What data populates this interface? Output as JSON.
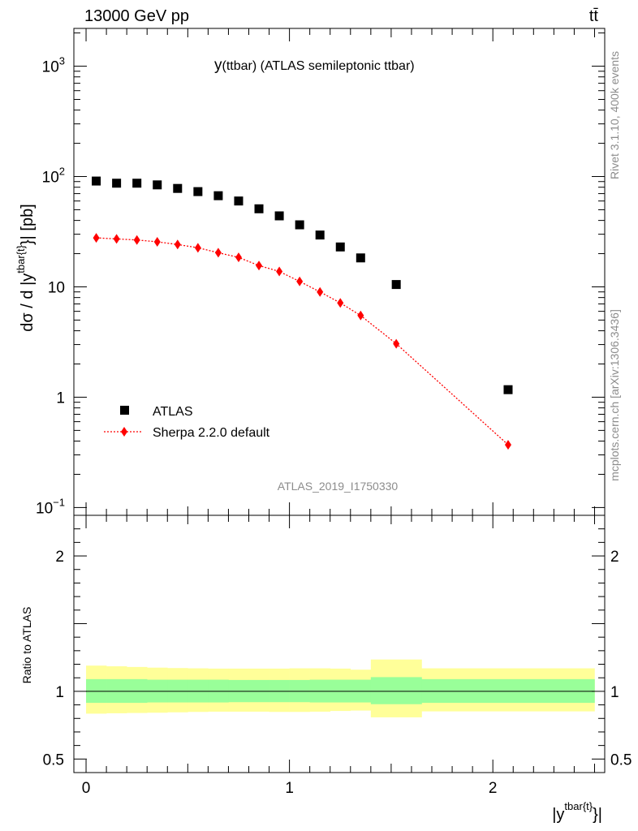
{
  "header": {
    "left": "13000 GeV pp",
    "right": "tt̄"
  },
  "side_labels": {
    "rivet": "Rivet 3.1.10,  400k events",
    "mcplots": "mcplots.cern.ch [arXiv:1306.3436]"
  },
  "chart_data": [
    {
      "type": "scatter",
      "title_main": "y",
      "title_rest": "(ttbar) (ATLAS semileptonic ttbar)",
      "analysis_id": "ATLAS_2019_I1750330",
      "ylabel": "dσ / d |y^{tbar{t}}| [pb]",
      "yscale": "log",
      "ylim": [
        0.085,
        2200
      ],
      "xlim": [
        -0.06,
        2.55
      ],
      "ytick_labels": [
        "10^-1",
        "1",
        "10",
        "10^2",
        "10^3"
      ],
      "legend_position": "bottom-left",
      "series": [
        {
          "name": "ATLAS",
          "color": "#000000",
          "marker": "square",
          "x": [
            0.05,
            0.15,
            0.25,
            0.35,
            0.45,
            0.55,
            0.65,
            0.75,
            0.85,
            0.95,
            1.05,
            1.15,
            1.25,
            1.35,
            1.525,
            2.075
          ],
          "y": [
            91,
            87,
            87,
            84,
            78,
            73,
            67,
            60,
            51,
            44,
            36.5,
            29.5,
            23,
            18.3,
            10.5,
            1.17
          ]
        },
        {
          "name": "Sherpa 2.2.0 default",
          "color": "#ff0000",
          "marker": "diamond",
          "line": "dotted",
          "x": [
            0.05,
            0.15,
            0.25,
            0.35,
            0.45,
            0.55,
            0.65,
            0.75,
            0.85,
            0.95,
            1.05,
            1.15,
            1.25,
            1.35,
            1.525,
            2.075
          ],
          "y": [
            27.8,
            27.2,
            26.6,
            25.6,
            24.2,
            22.6,
            20.4,
            18.5,
            15.6,
            13.8,
            11.2,
            9.0,
            7.15,
            5.5,
            3.05,
            0.37
          ]
        }
      ]
    },
    {
      "type": "area",
      "ylabel": "Ratio to ATLAS",
      "xlabel": "|y^{tbar{t}}|",
      "ylim": [
        0.4,
        2.3
      ],
      "xlim": [
        -0.06,
        2.55
      ],
      "x_tick_labels": [
        "0",
        "1",
        "2"
      ],
      "y_tick_labels": [
        "0.5",
        "1",
        "2"
      ],
      "bands": {
        "bins": [
          0.0,
          0.1,
          0.2,
          0.3,
          0.4,
          0.5,
          0.6,
          0.7,
          0.8,
          0.9,
          1.0,
          1.1,
          1.2,
          1.3,
          1.4,
          1.65,
          2.5
        ],
        "green_colour": "#99ff99",
        "yellow_colour": "#ffff99",
        "green_lo": [
          0.915,
          0.915,
          0.915,
          0.918,
          0.918,
          0.918,
          0.918,
          0.92,
          0.92,
          0.92,
          0.92,
          0.918,
          0.918,
          0.918,
          0.905,
          0.915
        ],
        "green_hi": [
          1.09,
          1.09,
          1.09,
          1.086,
          1.086,
          1.086,
          1.086,
          1.084,
          1.084,
          1.084,
          1.084,
          1.086,
          1.086,
          1.086,
          1.105,
          1.09
        ],
        "yellow_lo": [
          0.835,
          0.838,
          0.84,
          0.842,
          0.845,
          0.848,
          0.85,
          0.85,
          0.85,
          0.848,
          0.848,
          0.85,
          0.855,
          0.858,
          0.808,
          0.852
        ],
        "yellow_hi": [
          1.19,
          1.185,
          1.18,
          1.175,
          1.172,
          1.17,
          1.168,
          1.168,
          1.168,
          1.168,
          1.17,
          1.17,
          1.168,
          1.16,
          1.235,
          1.17
        ]
      },
      "reference_line": 1.0
    }
  ]
}
